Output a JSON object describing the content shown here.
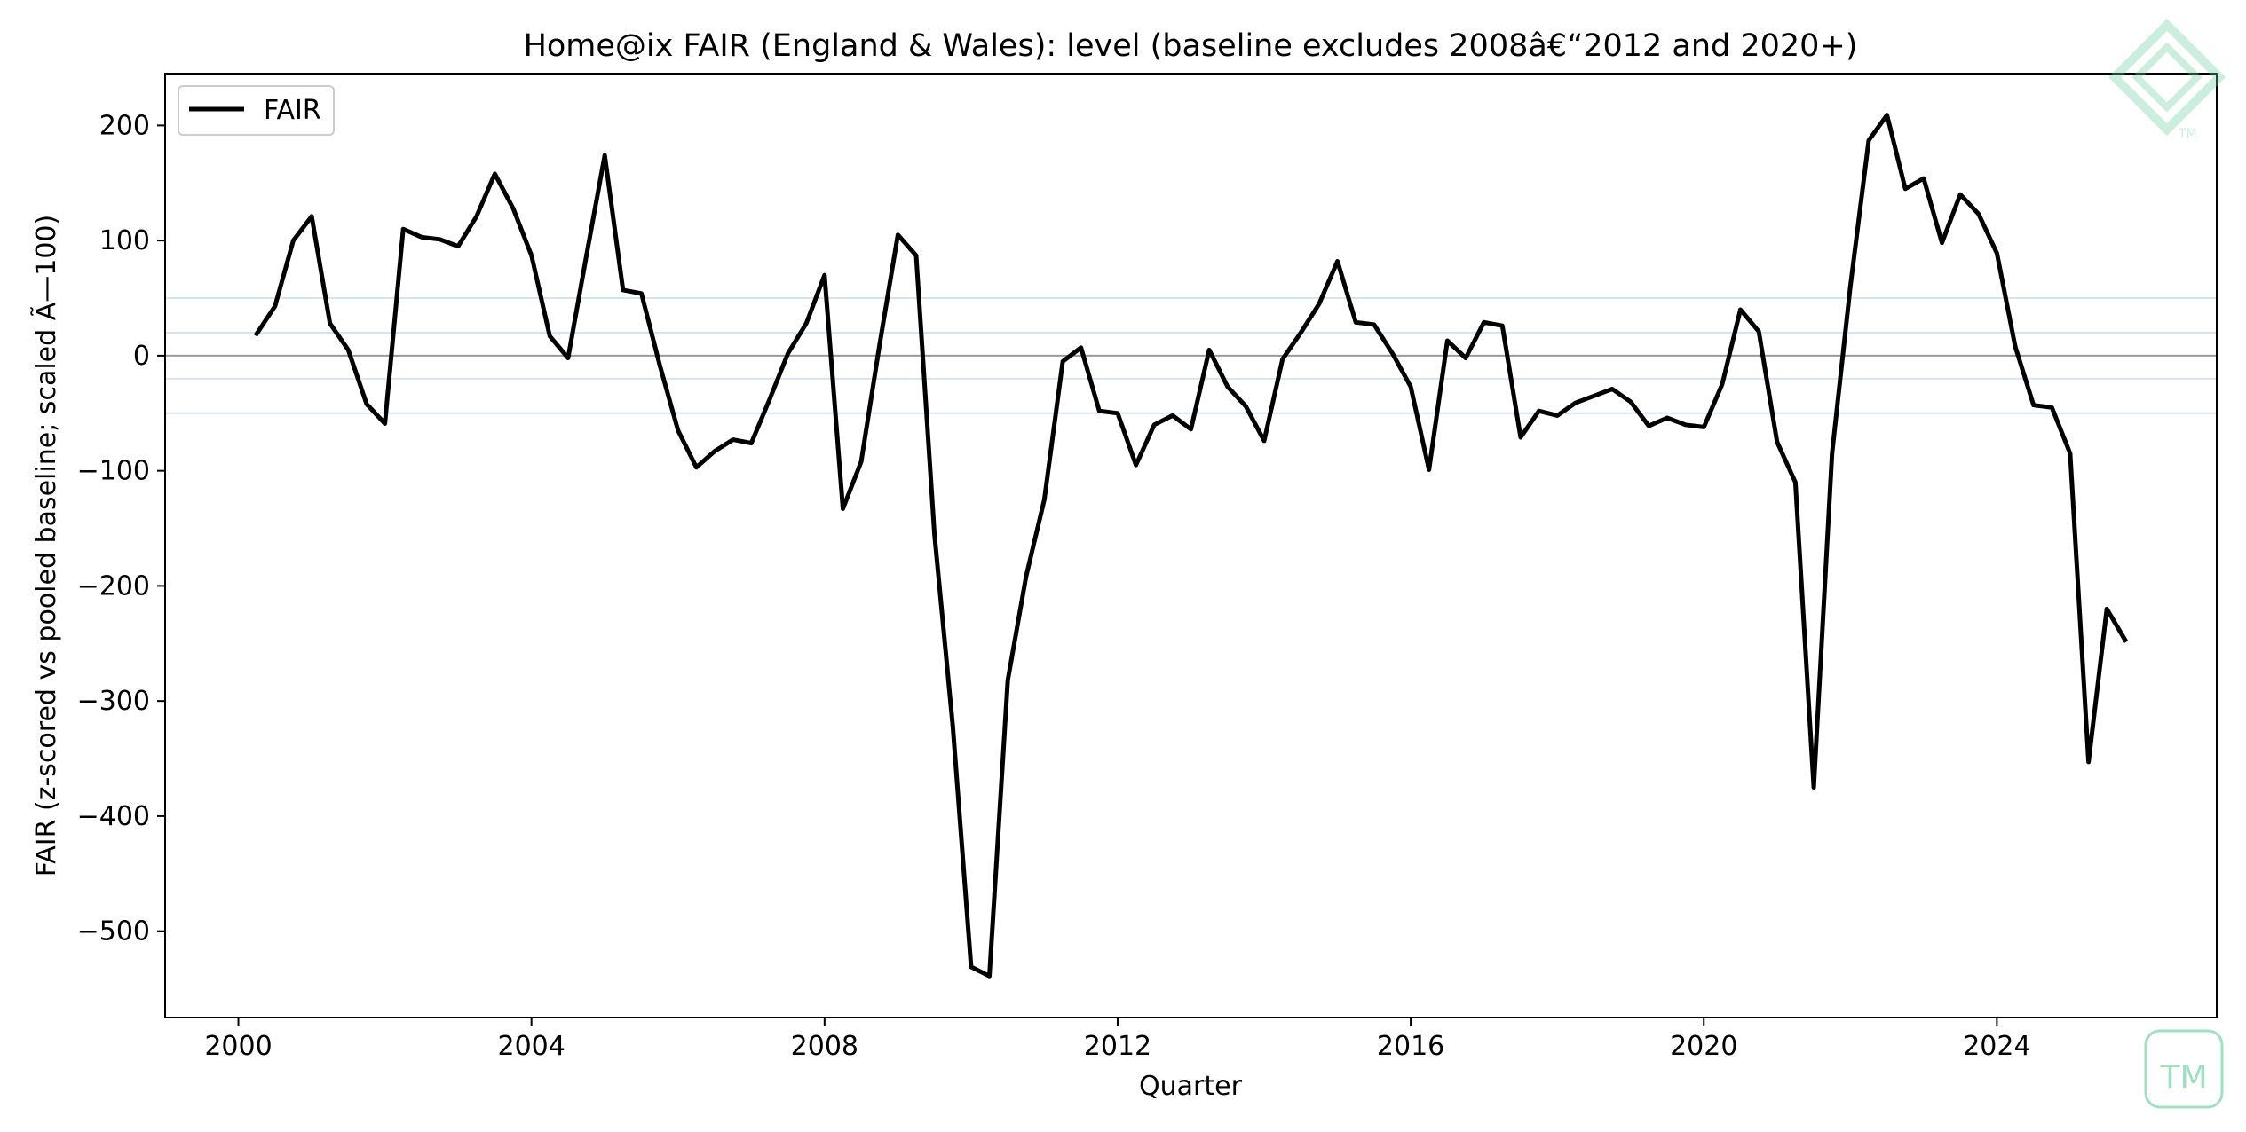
{
  "chart_data": {
    "type": "line",
    "title": "Home@ix FAIR (England & Wales): level (baseline excludes 2008â€“2012 and 2020+)",
    "xlabel": "Quarter",
    "ylabel": "FAIR (z-scored vs pooled baseline; scaled Ã—100)",
    "xlim": [
      1999,
      2027
    ],
    "ylim": [
      -575,
      245
    ],
    "x_ticks": [
      2000,
      2004,
      2008,
      2012,
      2016,
      2020,
      2024
    ],
    "y_ticks": [
      200,
      100,
      0,
      -100,
      -200,
      -300,
      -400,
      -500
    ],
    "y_tick_labels": [
      "200",
      "100",
      "0",
      "−100",
      "−200",
      "−300",
      "−400",
      "−500"
    ],
    "grid": false,
    "legend_position": "top-left",
    "reference_lines": {
      "zero": {
        "value": 0,
        "color": "#999999"
      },
      "bands": {
        "values": [
          50,
          20,
          -20,
          -50
        ],
        "color": "#d6e4f0"
      }
    },
    "series": [
      {
        "name": "FAIR",
        "color": "#000000",
        "x": [
          2000.25,
          2000.5,
          2000.75,
          2001.0,
          2001.25,
          2001.5,
          2001.75,
          2002.0,
          2002.25,
          2002.5,
          2002.75,
          2003.0,
          2003.25,
          2003.5,
          2003.75,
          2004.0,
          2004.25,
          2004.5,
          2004.75,
          2005.0,
          2005.25,
          2005.5,
          2005.75,
          2006.0,
          2006.25,
          2006.5,
          2006.75,
          2007.0,
          2007.25,
          2007.5,
          2007.75,
          2008.0,
          2008.25,
          2008.5,
          2008.75,
          2009.0,
          2009.25,
          2009.5,
          2009.75,
          2010.0,
          2010.25,
          2010.5,
          2010.75,
          2011.0,
          2011.25,
          2011.5,
          2011.75,
          2012.0,
          2012.25,
          2012.5,
          2012.75,
          2013.0,
          2013.25,
          2013.5,
          2013.75,
          2014.0,
          2014.25,
          2014.5,
          2014.75,
          2015.0,
          2015.25,
          2015.5,
          2015.75,
          2016.0,
          2016.25,
          2016.5,
          2016.75,
          2017.0,
          2017.25,
          2017.5,
          2017.75,
          2018.0,
          2018.25,
          2018.5,
          2018.75,
          2019.0,
          2019.25,
          2019.5,
          2019.75,
          2020.0,
          2020.25,
          2020.5,
          2020.75,
          2021.0,
          2021.25,
          2021.5,
          2021.75,
          2022.0,
          2022.25,
          2022.5,
          2022.75,
          2023.0,
          2023.25,
          2023.5,
          2023.75,
          2024.0,
          2024.25,
          2024.5,
          2024.75,
          2025.0,
          2025.25,
          2025.5,
          2025.75
        ],
        "values": [
          19,
          43,
          100,
          121,
          28,
          5,
          -42,
          -59,
          110,
          103,
          101,
          95,
          121,
          158,
          128,
          87,
          17,
          -2,
          87,
          174,
          57,
          54,
          -8,
          -65,
          -97,
          -83,
          -73,
          -76,
          -38,
          2,
          28,
          70,
          -133,
          -92,
          9,
          105,
          87,
          -155,
          -322,
          -531,
          -539,
          -282,
          -192,
          -125,
          -5,
          7,
          -48,
          -50,
          -95,
          -60,
          -52,
          -64,
          5,
          -27,
          -44,
          -74,
          -3,
          20,
          45,
          82,
          29,
          27,
          2,
          -27,
          -99,
          13,
          -2,
          29,
          26,
          -71,
          -48,
          -52,
          -41,
          -35,
          -29,
          -40,
          -61,
          -54,
          -60,
          -62,
          -25,
          40,
          21,
          -75,
          -110,
          -375,
          -85,
          60,
          187,
          209,
          145,
          154,
          98,
          140,
          123,
          89,
          8,
          -43,
          -45,
          -85,
          -353,
          -220,
          -247
        ]
      }
    ]
  }
}
